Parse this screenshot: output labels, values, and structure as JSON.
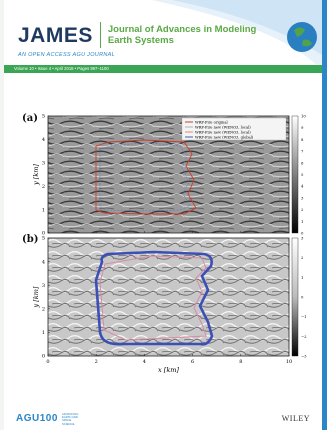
{
  "journal": {
    "acronym": "JAMES",
    "name_line1": "Journal of Advances in Modeling",
    "name_line2": "Earth Systems",
    "open_access": "AN OPEN ACCESS AGU JOURNAL",
    "issue_line": "Volume 10 • Issue 4 • April 2018 • Pages 997–1100"
  },
  "figure": {
    "panel_a_label": "(a)",
    "panel_b_label": "(b)",
    "xlabel": "x [km]",
    "ylabel": "y [km]",
    "x_ticks": [
      "0",
      "2",
      "4",
      "6",
      "8",
      "10"
    ],
    "y_ticks": [
      "0",
      "1",
      "2",
      "3",
      "4",
      "5"
    ],
    "colorbar_a_ticks": [
      "0",
      "1",
      "2",
      "3",
      "4",
      "5",
      "6",
      "7",
      "8",
      "9",
      "10"
    ],
    "colorbar_b_ticks": [
      "−3",
      "−2",
      "−1",
      "0",
      "1",
      "2",
      "3"
    ],
    "legend": [
      {
        "label": "WRF-Fire original",
        "color": "#d03a2a"
      },
      {
        "label": "WRF-Fire new (WENO3, local)",
        "color": "#b0b0b0"
      },
      {
        "label": "WRF-Fire new (WENO3, local)",
        "color": "#e08a6a"
      },
      {
        "label": "WRF-Fire new (WENO3, global)",
        "color": "#3d5bb0"
      }
    ]
  },
  "footer": {
    "agu_logo": "AGU100",
    "agu_sub": "ADVANCING EARTH AND SPACE SCIENCE",
    "publisher": "WILEY"
  },
  "colors": {
    "navy": "#1f3a5f",
    "green": "#3aa655",
    "blue": "#2a86c8"
  }
}
